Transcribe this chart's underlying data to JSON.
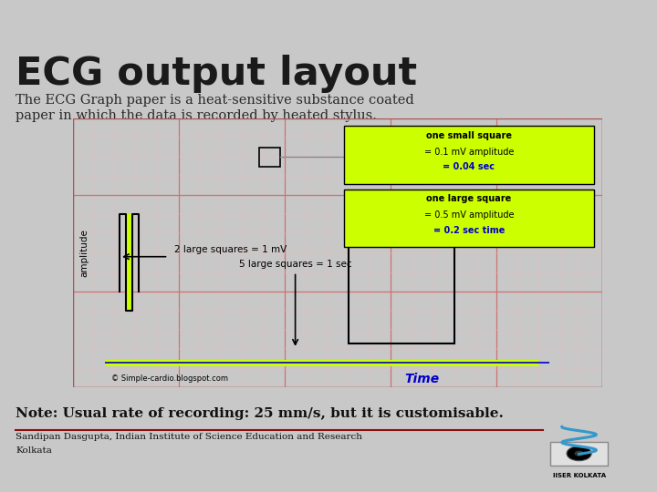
{
  "bg_color": "#c8c8c8",
  "red_bar_color": "#9b1111",
  "title": "ECG output layout",
  "subtitle_line1": "The ECG Graph paper is a heat-sensitive substance coated",
  "subtitle_line2": "paper in which the data is recorded by heated stylus.",
  "note": "Note: Usual rate of recording: 25 mm/s, but it is customisable.",
  "footer_line1": "Sandipan Dasgupta, Indian Institute of Science Education and Research",
  "footer_line2": "Kolkata",
  "ecg_bg": "#f5dada",
  "grid_major_color": "#d07070",
  "grid_minor_color": "#f0b8b8",
  "yellow_color": "#ccff00",
  "box1_text_line1": "one small square",
  "box1_text_line2": "= 0.1 mV amplitude",
  "box1_text_line3": "= 0.04 sec",
  "box2_text_line1": "one large square",
  "box2_text_line2": "= 0.5 mV amplitude",
  "box2_text_line3": "= 0.2 sec time",
  "arrow_text1": "2 large squares = 1 mV",
  "arrow_text2": "5 large squares = 1 sec",
  "time_label": "Time",
  "amplitude_label": "amplitude",
  "copyright_text": "© Simple-cardio.blogspot.com",
  "blue_color": "#0000cc",
  "black_color": "#000000",
  "footer_line_color": "#8b1111"
}
